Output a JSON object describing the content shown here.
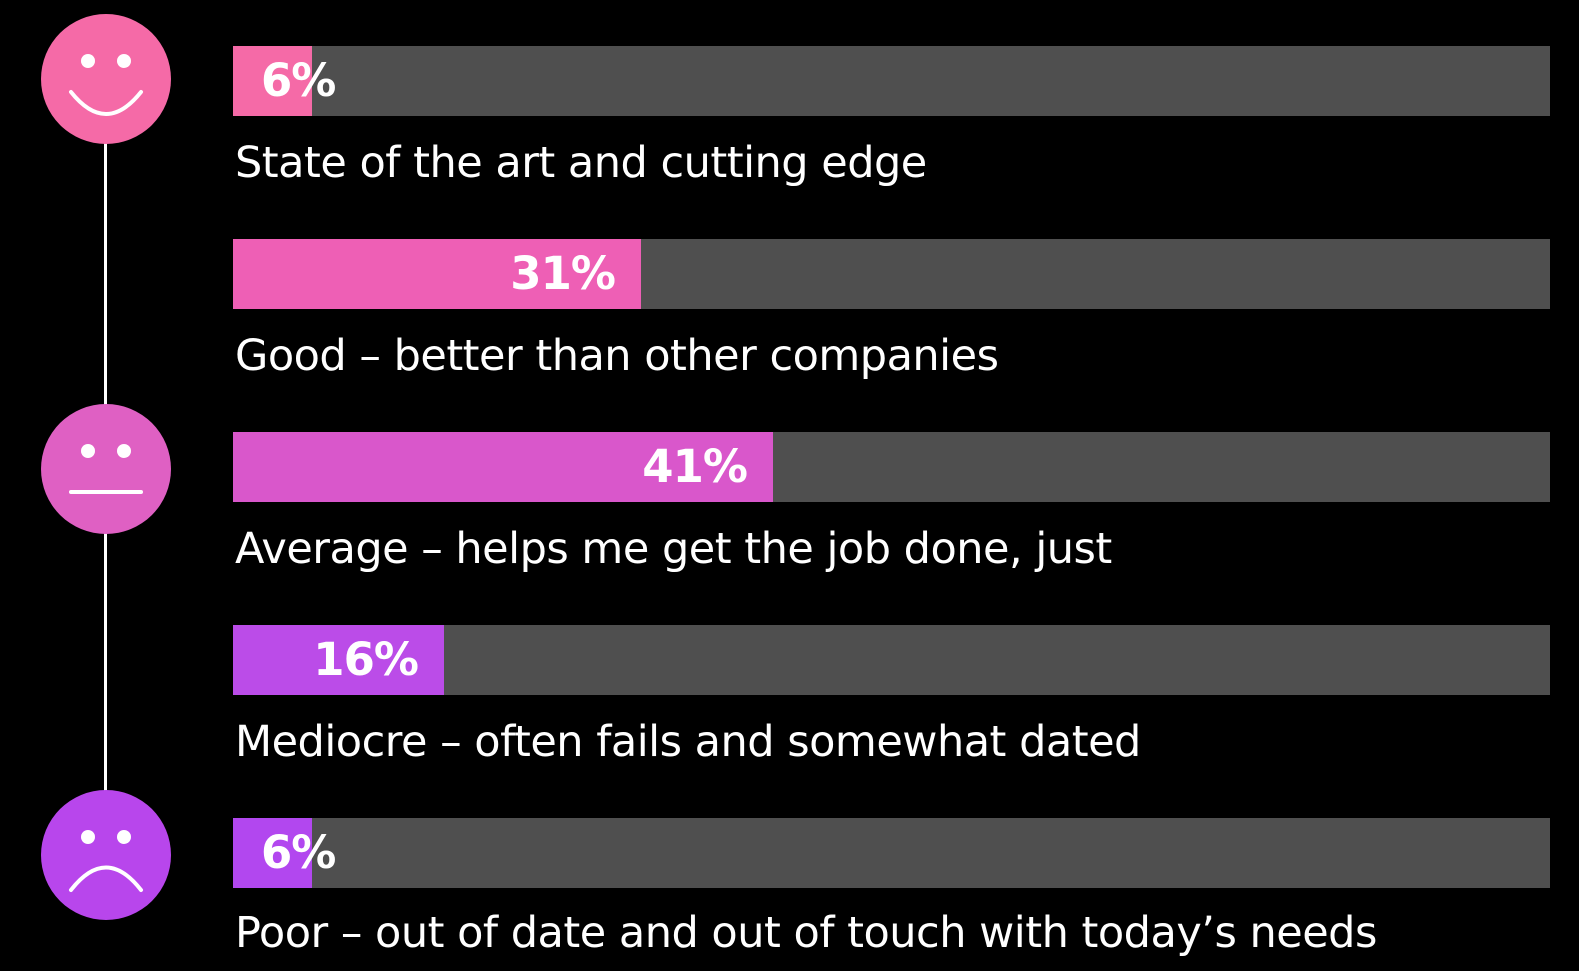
{
  "chart_data": {
    "type": "bar",
    "orientation": "horizontal",
    "categories": [
      "State of the art and cutting edge",
      "Good – better than other companies",
      "Average – helps me get the job done, just",
      "Mediocre – often fails and somewhat dated",
      "Poor – out of date and out of touch with today’s needs"
    ],
    "values": [
      6,
      31,
      41,
      16,
      6
    ],
    "value_labels": [
      "6%",
      "31%",
      "41%",
      "16%",
      "6%"
    ],
    "unit": "%",
    "xlim": [
      0,
      100
    ],
    "grid": false,
    "legend": "none",
    "bar_colors": [
      "#f56aa7",
      "#ee5fb5",
      "#d957cb",
      "#bb4ce8",
      "#b247ef"
    ],
    "track_color": "#4f4f4f",
    "background": "#000000"
  },
  "scale_icons": [
    {
      "name": "smile-icon",
      "color": "#f56aa7"
    },
    {
      "name": "neutral-face-icon",
      "color": "#df60c3"
    },
    {
      "name": "frown-icon",
      "color": "#b846ec"
    }
  ]
}
